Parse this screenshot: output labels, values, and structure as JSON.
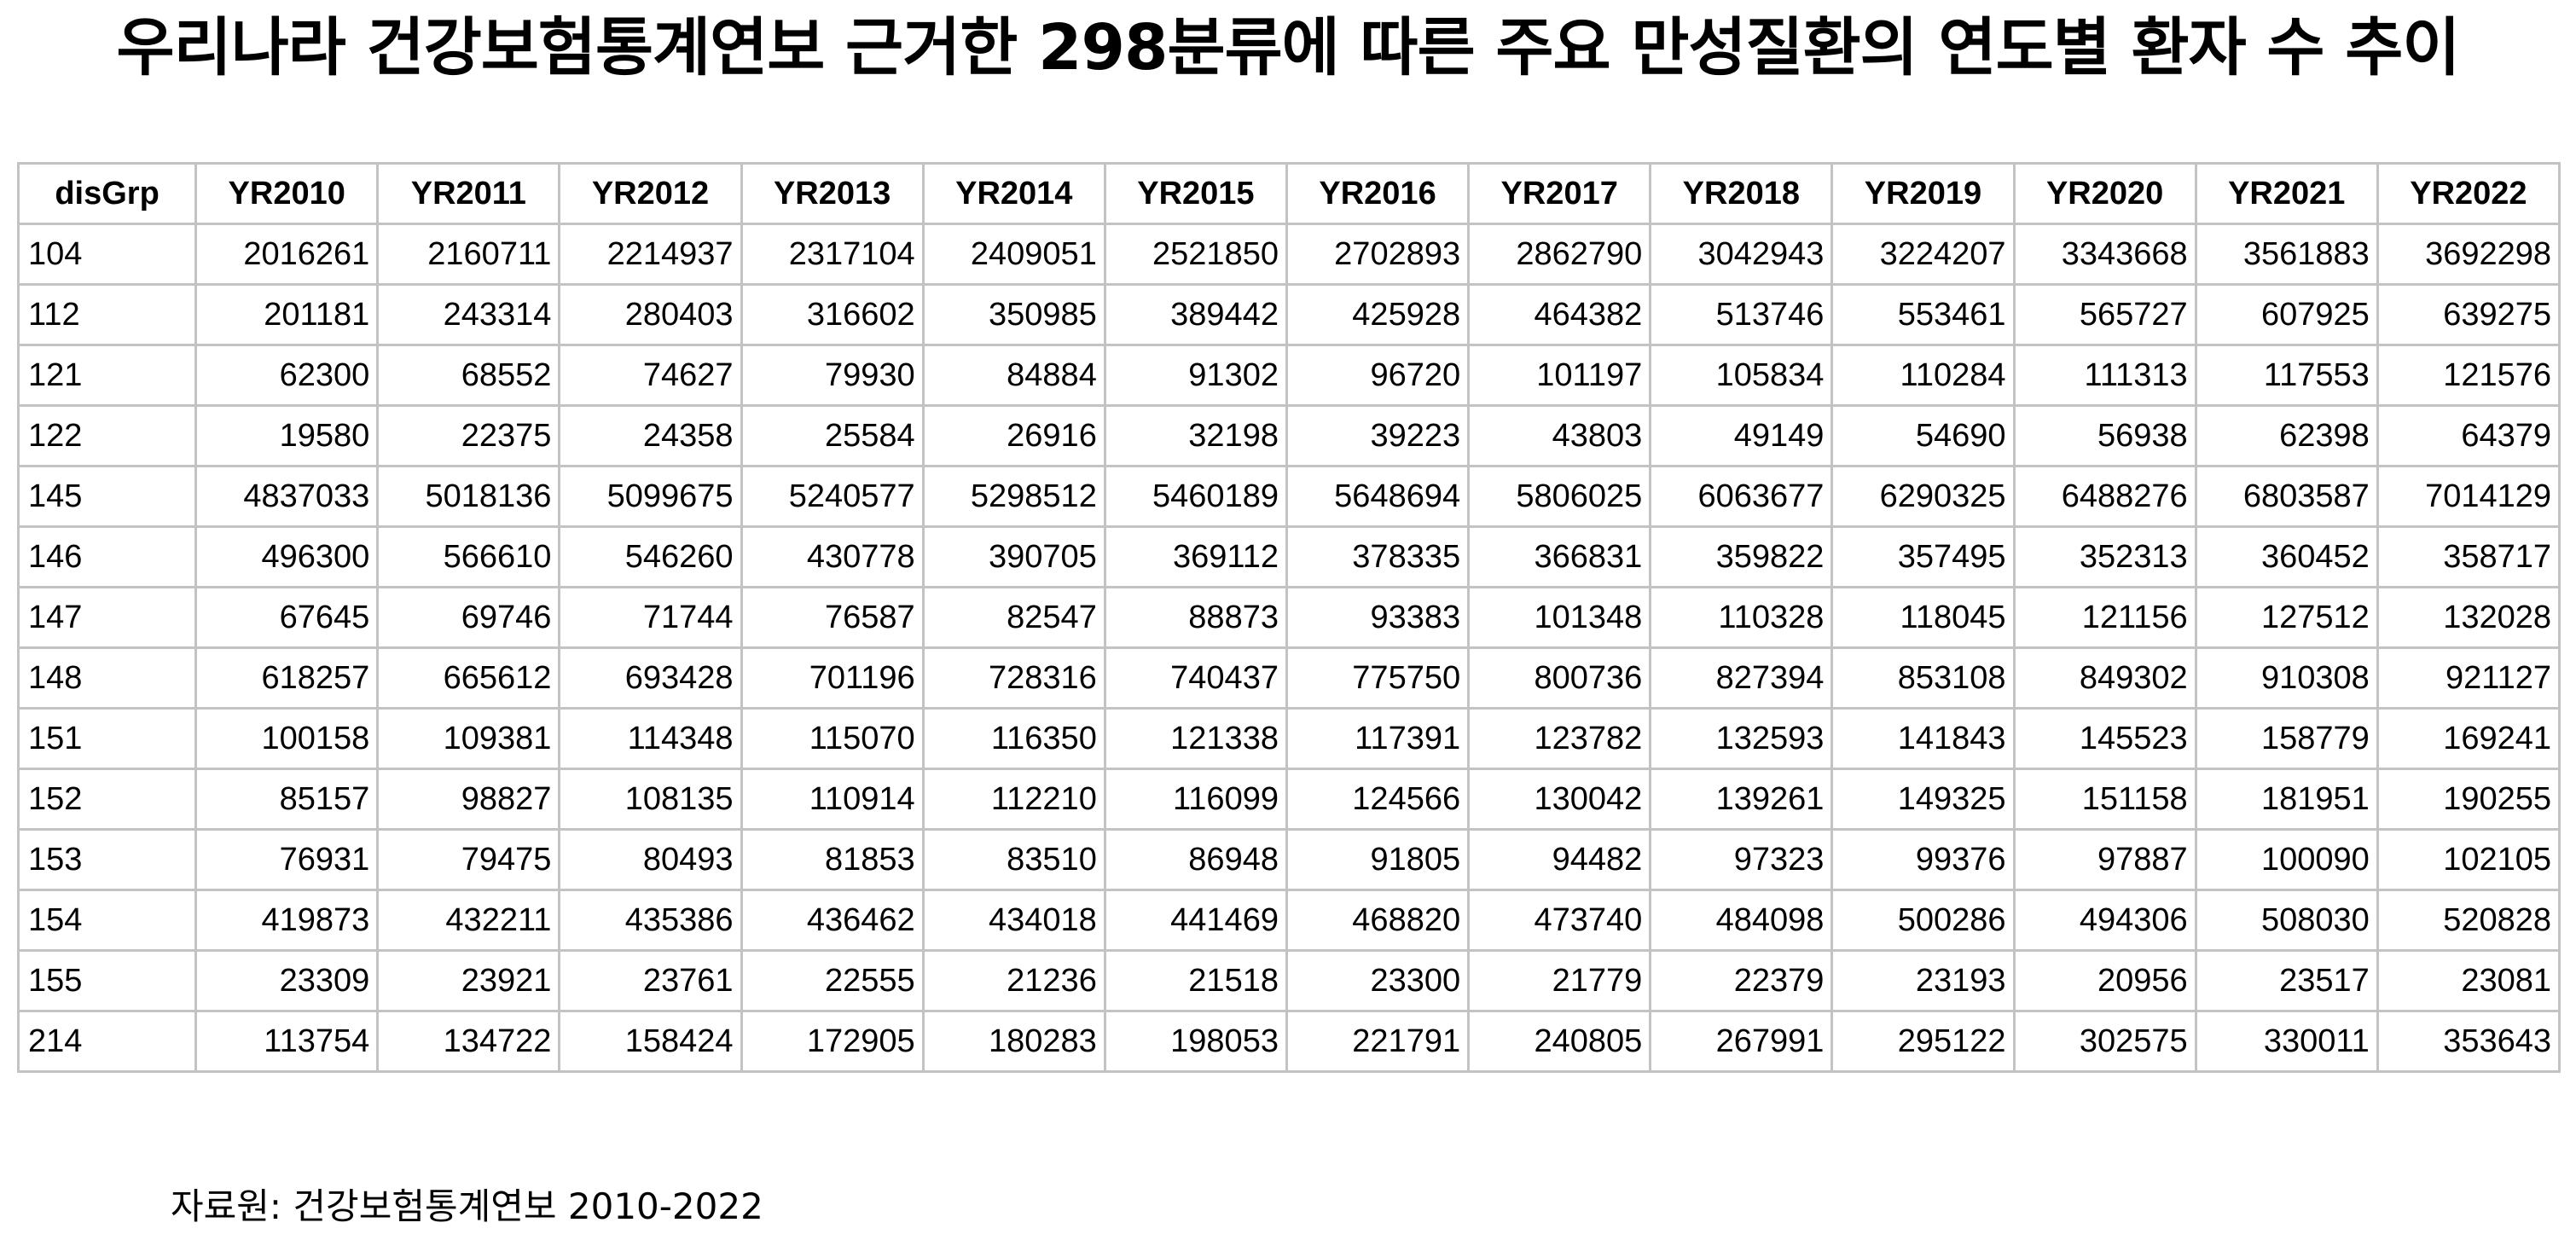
{
  "title": "우리나라 건강보험통계연보 근거한 298분류에 따른 주요 만성질환의 연도별 환자 수 추이",
  "table": {
    "columns": [
      "disGrp",
      "YR2010",
      "YR2011",
      "YR2012",
      "YR2013",
      "YR2014",
      "YR2015",
      "YR2016",
      "YR2017",
      "YR2018",
      "YR2019",
      "YR2020",
      "YR2021",
      "YR2022"
    ],
    "rows": [
      [
        "104",
        "2016261",
        "2160711",
        "2214937",
        "2317104",
        "2409051",
        "2521850",
        "2702893",
        "2862790",
        "3042943",
        "3224207",
        "3343668",
        "3561883",
        "3692298"
      ],
      [
        "112",
        "201181",
        "243314",
        "280403",
        "316602",
        "350985",
        "389442",
        "425928",
        "464382",
        "513746",
        "553461",
        "565727",
        "607925",
        "639275"
      ],
      [
        "121",
        "62300",
        "68552",
        "74627",
        "79930",
        "84884",
        "91302",
        "96720",
        "101197",
        "105834",
        "110284",
        "111313",
        "117553",
        "121576"
      ],
      [
        "122",
        "19580",
        "22375",
        "24358",
        "25584",
        "26916",
        "32198",
        "39223",
        "43803",
        "49149",
        "54690",
        "56938",
        "62398",
        "64379"
      ],
      [
        "145",
        "4837033",
        "5018136",
        "5099675",
        "5240577",
        "5298512",
        "5460189",
        "5648694",
        "5806025",
        "6063677",
        "6290325",
        "6488276",
        "6803587",
        "7014129"
      ],
      [
        "146",
        "496300",
        "566610",
        "546260",
        "430778",
        "390705",
        "369112",
        "378335",
        "366831",
        "359822",
        "357495",
        "352313",
        "360452",
        "358717"
      ],
      [
        "147",
        "67645",
        "69746",
        "71744",
        "76587",
        "82547",
        "88873",
        "93383",
        "101348",
        "110328",
        "118045",
        "121156",
        "127512",
        "132028"
      ],
      [
        "148",
        "618257",
        "665612",
        "693428",
        "701196",
        "728316",
        "740437",
        "775750",
        "800736",
        "827394",
        "853108",
        "849302",
        "910308",
        "921127"
      ],
      [
        "151",
        "100158",
        "109381",
        "114348",
        "115070",
        "116350",
        "121338",
        "117391",
        "123782",
        "132593",
        "141843",
        "145523",
        "158779",
        "169241"
      ],
      [
        "152",
        "85157",
        "98827",
        "108135",
        "110914",
        "112210",
        "116099",
        "124566",
        "130042",
        "139261",
        "149325",
        "151158",
        "181951",
        "190255"
      ],
      [
        "153",
        "76931",
        "79475",
        "80493",
        "81853",
        "83510",
        "86948",
        "91805",
        "94482",
        "97323",
        "99376",
        "97887",
        "100090",
        "102105"
      ],
      [
        "154",
        "419873",
        "432211",
        "435386",
        "436462",
        "434018",
        "441469",
        "468820",
        "473740",
        "484098",
        "500286",
        "494306",
        "508030",
        "520828"
      ],
      [
        "155",
        "23309",
        "23921",
        "23761",
        "22555",
        "21236",
        "21518",
        "23300",
        "21779",
        "22379",
        "23193",
        "20956",
        "23517",
        "23081"
      ],
      [
        "214",
        "113754",
        "134722",
        "158424",
        "172905",
        "180283",
        "198053",
        "221791",
        "240805",
        "267991",
        "295122",
        "302575",
        "330011",
        "353643"
      ]
    ]
  },
  "source": "자료원: 건강보험통계연보 2010-2022"
}
